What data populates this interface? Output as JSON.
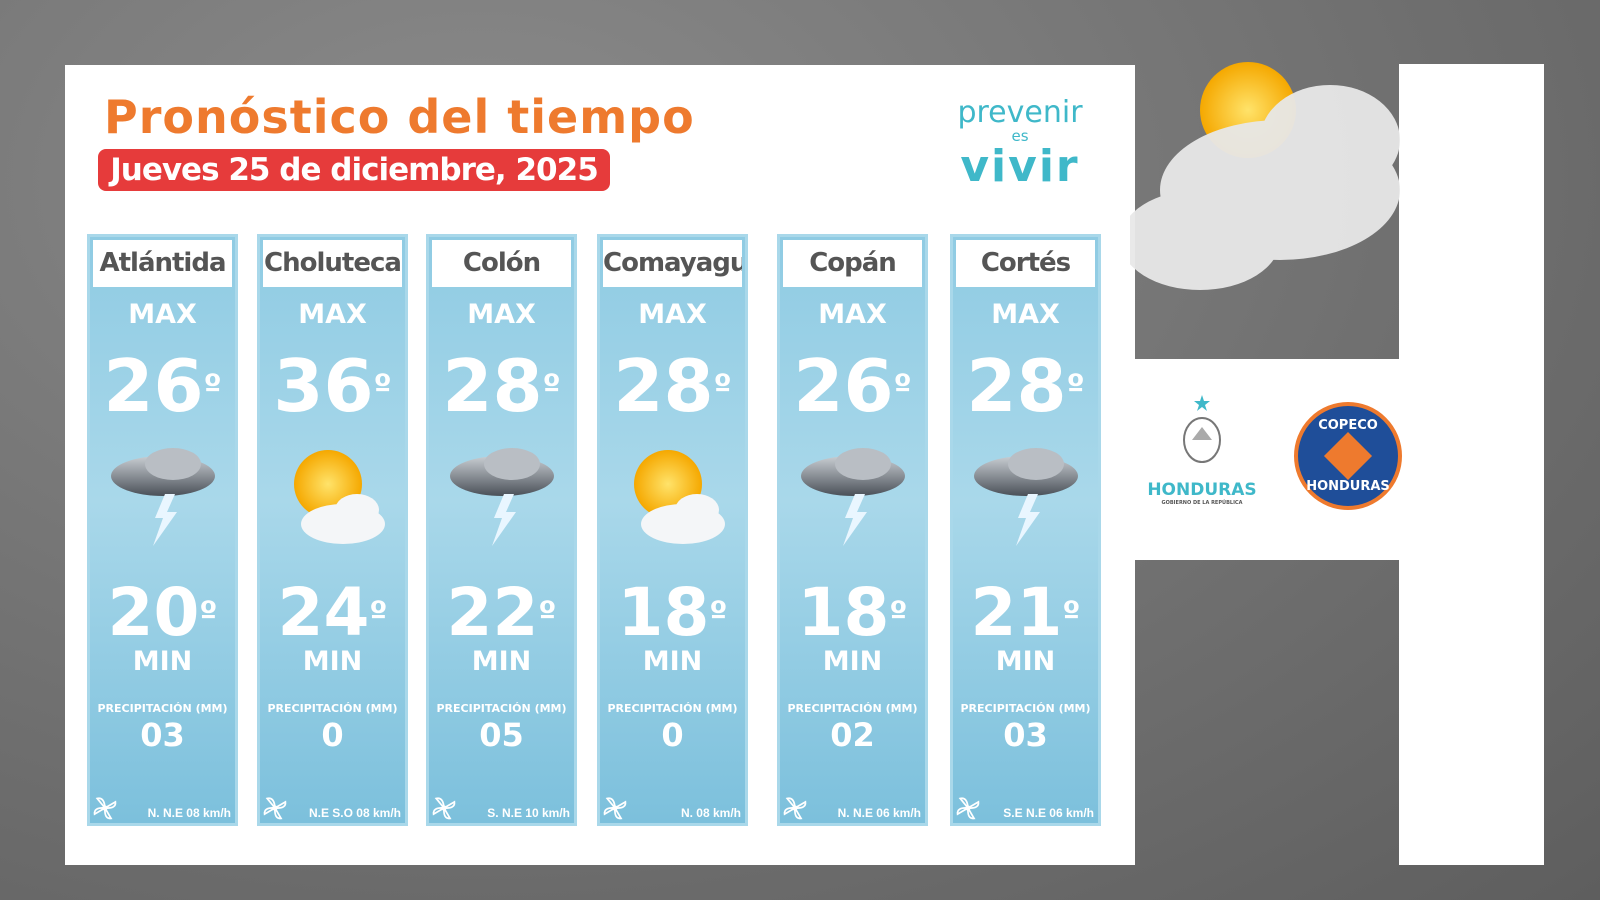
{
  "header": {
    "title": "Pronóstico del tiempo",
    "date": "Jueves 25 de diciembre, 2025"
  },
  "logo": {
    "line1": "prevenir",
    "line2": "es",
    "line3": "vivir"
  },
  "labels": {
    "max": "MAX",
    "min": "MIN",
    "precip": "PRECIPITACIÓN (MM)"
  },
  "departments": [
    {
      "name": "Atlántida",
      "max": "26",
      "min": "20",
      "precip": "03",
      "wind": "N.  N.E 08 km/h",
      "icon": "thunderstorm-icon"
    },
    {
      "name": "Choluteca",
      "max": "36",
      "min": "24",
      "precip": "0",
      "wind": "N.E  S.O 08 km/h",
      "icon": "sun-cloud-icon"
    },
    {
      "name": "Colón",
      "max": "28",
      "min": "22",
      "precip": "05",
      "wind": "S. N.E 10 km/h",
      "icon": "thunderstorm-icon"
    },
    {
      "name": "Comayagua",
      "max": "28",
      "min": "18",
      "precip": "0",
      "wind": "N. 08 km/h",
      "icon": "sun-cloud-icon"
    },
    {
      "name": "Copán",
      "max": "26",
      "min": "18",
      "precip": "02",
      "wind": "N. N.E 06 km/h",
      "icon": "thunderstorm-icon"
    },
    {
      "name": "Cortés",
      "max": "28",
      "min": "21",
      "precip": "03",
      "wind": "S.E N.E 06 km/h",
      "icon": "thunderstorm-icon"
    }
  ],
  "degree": "º",
  "sponsors": {
    "honduras": "HONDURAS",
    "honduras_sub": "GOBIERNO DE LA REPÚBLICA",
    "copeco_top": "COPECO",
    "copeco_bottom": "HONDURAS"
  },
  "colors": {
    "title": "#ee7a2e",
    "date_bg": "#e63b3b",
    "logo": "#3fb8c9",
    "column": "#8fcbe3"
  }
}
